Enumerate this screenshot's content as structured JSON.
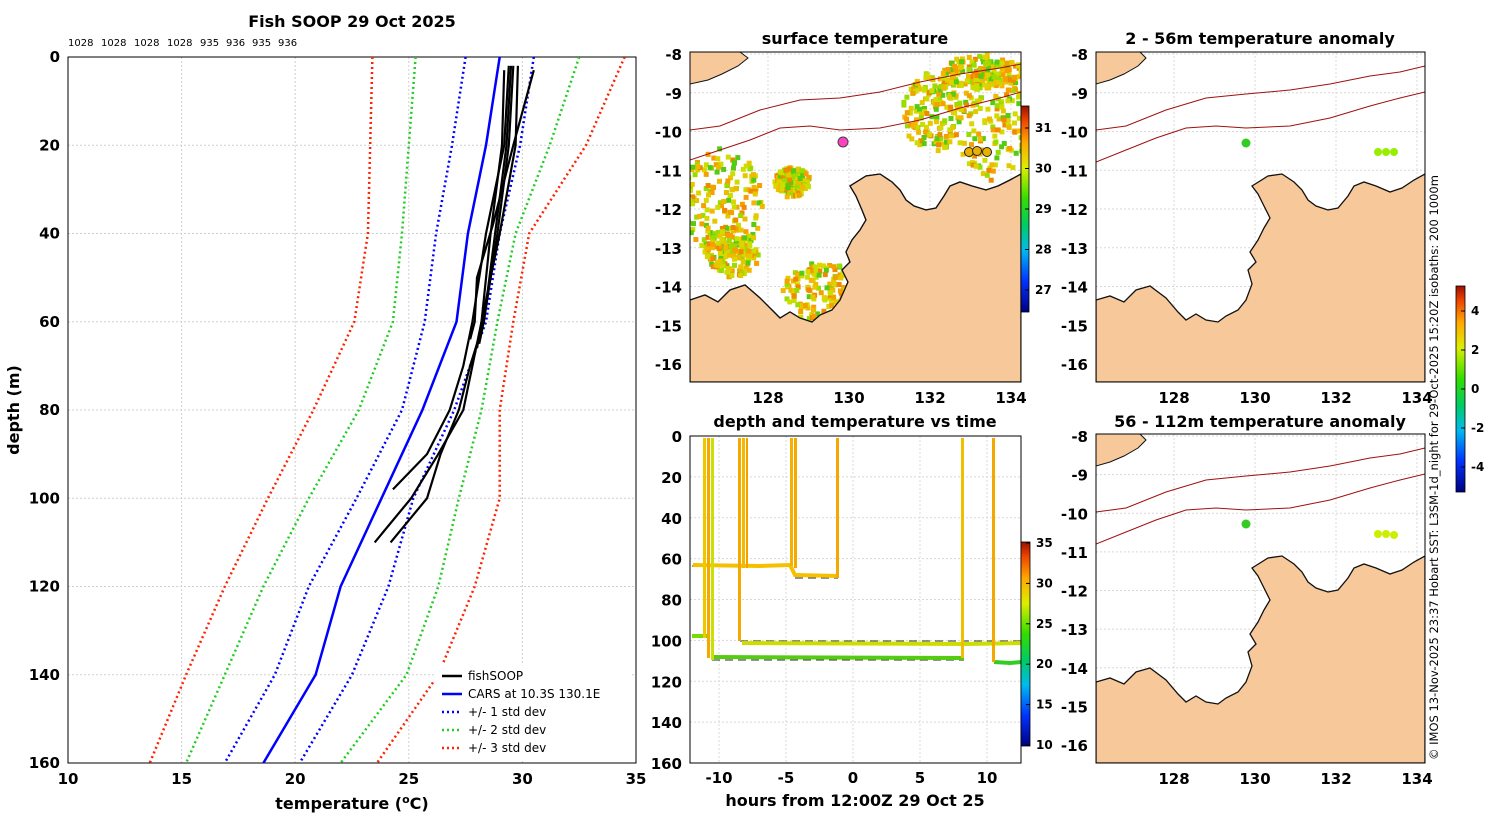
{
  "credit": "© IMOS 13-Nov-2025 23:37 Hobart SST: L3SM-1d_night for 29-Oct-2025 15:20Z isobaths: 200  1000m",
  "profile": {
    "title": "Fish SOOP 29 Oct 2025",
    "drop_ids": [
      "1028",
      "1028",
      "1028",
      "1028",
      "935",
      "936",
      "935",
      "936"
    ],
    "xlabel": "temperature (°C)",
    "ylabel": "depth (m)",
    "xlim": [
      10,
      35
    ],
    "ylim": [
      0,
      160
    ],
    "xticks": [
      "10",
      "15",
      "20",
      "25",
      "30",
      "35"
    ],
    "yticks": [
      "0",
      "20",
      "40",
      "60",
      "80",
      "100",
      "120",
      "140",
      "160"
    ],
    "legend": [
      "fishSOOP",
      "CARS at 10.3S 130.1E",
      "+/- 1 std dev",
      "+/- 2 std dev",
      "+/- 3 std dev"
    ]
  },
  "sst_map": {
    "title": "surface temperature",
    "xticks": [
      "128",
      "130",
      "132",
      "134"
    ],
    "yticks": [
      "-8",
      "-9",
      "-10",
      "-11",
      "-12",
      "-13",
      "-14",
      "-15",
      "-16"
    ],
    "colorbar_ticks": [
      "31",
      "30",
      "29",
      "28",
      "27"
    ]
  },
  "anom_map_1": {
    "title": "2 - 56m temperature anomaly",
    "xticks": [
      "128",
      "130",
      "132",
      "134"
    ],
    "yticks": [
      "-8",
      "-9",
      "-10",
      "-11",
      "-12",
      "-13",
      "-14",
      "-15",
      "-16"
    ]
  },
  "anom_map_2": {
    "title": "56 - 112m temperature anomaly",
    "xticks": [
      "128",
      "130",
      "132",
      "134"
    ],
    "yticks": [
      "-8",
      "-9",
      "-10",
      "-11",
      "-12",
      "-13",
      "-14",
      "-15",
      "-16"
    ]
  },
  "anom_colorbar": {
    "ticks": [
      "4",
      "2",
      "0",
      "-2",
      "-4"
    ]
  },
  "timeseries": {
    "title": "depth and temperature vs time",
    "xlabel": "hours from 12:00Z 29 Oct 25",
    "xticks": [
      "-10",
      "-5",
      "0",
      "5",
      "10"
    ],
    "yticks": [
      "0",
      "20",
      "40",
      "60",
      "80",
      "100",
      "120",
      "140",
      "160"
    ],
    "colorbar_ticks": [
      "35",
      "30",
      "25",
      "20",
      "15",
      "10"
    ]
  },
  "chart_data": {
    "type": "line",
    "title": "Fish SOOP 29 Oct 2025",
    "xlabel": "temperature (°C)",
    "ylabel": "depth (m)",
    "xlim": [
      10,
      35
    ],
    "ylim": [
      160,
      0
    ],
    "depths": [
      0,
      20,
      40,
      60,
      80,
      100,
      120,
      140,
      160
    ],
    "series": [
      {
        "name": "CARS at 10.3S 130.1E",
        "style": "solid",
        "color": "#0000ff",
        "values": [
          29.0,
          28.4,
          27.6,
          27.1,
          25.6,
          23.8,
          22.0,
          20.9,
          18.6
        ]
      },
      {
        "name": "+/- 1 std dev (upper)",
        "style": "dotted",
        "color": "#0000ff",
        "values": [
          30.5,
          29.9,
          29.0,
          28.4,
          27.0,
          25.2,
          24.1,
          22.5,
          20.2
        ]
      },
      {
        "name": "+/- 1 std dev (lower)",
        "style": "dotted",
        "color": "#0000ff",
        "values": [
          27.5,
          26.9,
          26.2,
          25.7,
          24.7,
          22.7,
          20.6,
          19.1,
          16.9
        ]
      },
      {
        "name": "+/- 2 std dev (upper)",
        "style": "dotted",
        "color": "#22cc22",
        "values": [
          32.5,
          31.2,
          29.7,
          28.9,
          28.2,
          27.2,
          26.3,
          24.9,
          22.0
        ]
      },
      {
        "name": "+/- 2 std dev (lower)",
        "style": "dotted",
        "color": "#22cc22",
        "values": [
          25.3,
          25.0,
          24.7,
          24.3,
          22.8,
          20.6,
          18.6,
          16.9,
          15.2
        ]
      },
      {
        "name": "+/- 3 std dev (upper)",
        "style": "dotted",
        "color": "#ff2200",
        "values": [
          34.5,
          32.8,
          30.3,
          29.6,
          29.0,
          29.0,
          27.9,
          26.3,
          23.6
        ]
      },
      {
        "name": "+/- 3 std dev (lower)",
        "style": "dotted",
        "color": "#ff2200",
        "values": [
          23.4,
          23.3,
          23.2,
          22.6,
          20.8,
          18.8,
          16.9,
          15.2,
          13.6
        ]
      }
    ],
    "fishSOOP_profiles": [
      {
        "depth": [
          2,
          20,
          40,
          60,
          70,
          80,
          90,
          100,
          110
        ],
        "temp": [
          29.8,
          29.7,
          29.0,
          28.2,
          27.8,
          27.4,
          26.3,
          25.1,
          23.5
        ]
      },
      {
        "depth": [
          2,
          20,
          40,
          60,
          70,
          80,
          90,
          100,
          110
        ],
        "temp": [
          29.5,
          29.3,
          28.8,
          28.3,
          27.7,
          27.2,
          26.4,
          25.8,
          24.2
        ]
      },
      {
        "depth": [
          2,
          20,
          40,
          60,
          70,
          80,
          90,
          98
        ],
        "temp": [
          29.4,
          29.2,
          28.4,
          27.8,
          27.4,
          26.8,
          25.8,
          24.3
        ]
      },
      {
        "depth": [
          3,
          20,
          40,
          60,
          66
        ],
        "temp": [
          29.2,
          29.1,
          28.6,
          28.2,
          28.0
        ]
      },
      {
        "depth": [
          2,
          20,
          40,
          60,
          65
        ],
        "temp": [
          29.6,
          29.4,
          28.9,
          28.3,
          28.1
        ]
      },
      {
        "depth": [
          3,
          20,
          38,
          50,
          60,
          64
        ],
        "temp": [
          30.5,
          29.6,
          28.7,
          28.0,
          27.9,
          27.7
        ]
      }
    ]
  }
}
